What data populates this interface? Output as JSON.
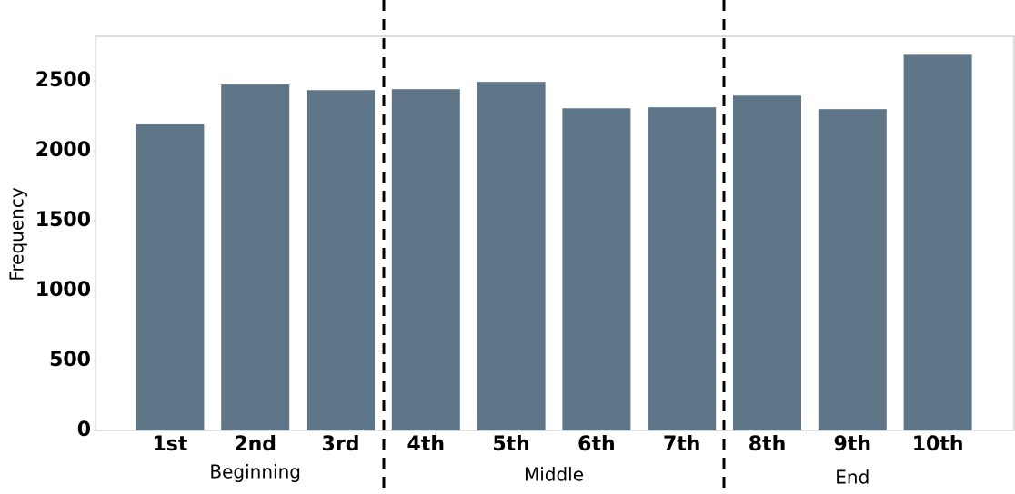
{
  "chart_data": {
    "type": "bar",
    "y_label": "Frequency",
    "categories": [
      "1st",
      "2nd",
      "3rd",
      "4th",
      "5th",
      "6th",
      "7th",
      "8th",
      "9th",
      "10th"
    ],
    "values": [
      2190,
      2475,
      2435,
      2442,
      2494,
      2305,
      2312,
      2396,
      2299,
      2688
    ],
    "color": "#5f7689",
    "ylim": [
      0,
      2820
    ],
    "yticks": [
      0,
      500,
      1000,
      1500,
      2000,
      2500
    ],
    "grid": false,
    "groups": [
      "Beginning",
      "Middle",
      "End"
    ]
  }
}
